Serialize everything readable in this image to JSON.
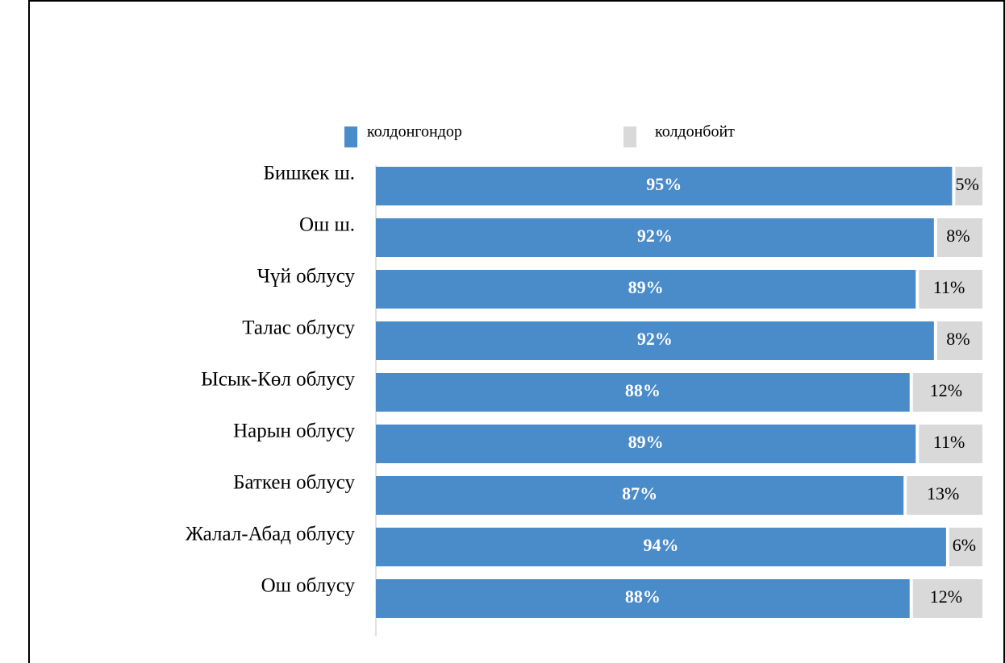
{
  "chart_data": {
    "type": "stacked_bar_horizontal",
    "categories": [
      "Бишкек ш.",
      "Ош ш.",
      "Чүй облусу",
      "Талас облусу",
      "Ысык-Көл облусу",
      "Нарын облусу",
      "Баткен облусу",
      "Жалал-Абад облусу",
      "Ош облусу"
    ],
    "series": [
      {
        "name": "колдонгондор",
        "color": "#4a8bc9",
        "values": [
          95,
          92,
          89,
          92,
          88,
          89,
          87,
          94,
          88
        ],
        "value_labels": [
          "95%",
          "92%",
          "89%",
          "92%",
          "88%",
          "89%",
          "87%",
          "94%",
          "88%"
        ]
      },
      {
        "name": "колдонбойт",
        "color": "#d9d9d9",
        "values": [
          5,
          8,
          11,
          8,
          12,
          11,
          13,
          6,
          12
        ],
        "value_labels": [
          "5%",
          "8%",
          "11%",
          "8%",
          "12%",
          "11%",
          "13%",
          "6%",
          "12%"
        ]
      }
    ],
    "legend": "top"
  }
}
